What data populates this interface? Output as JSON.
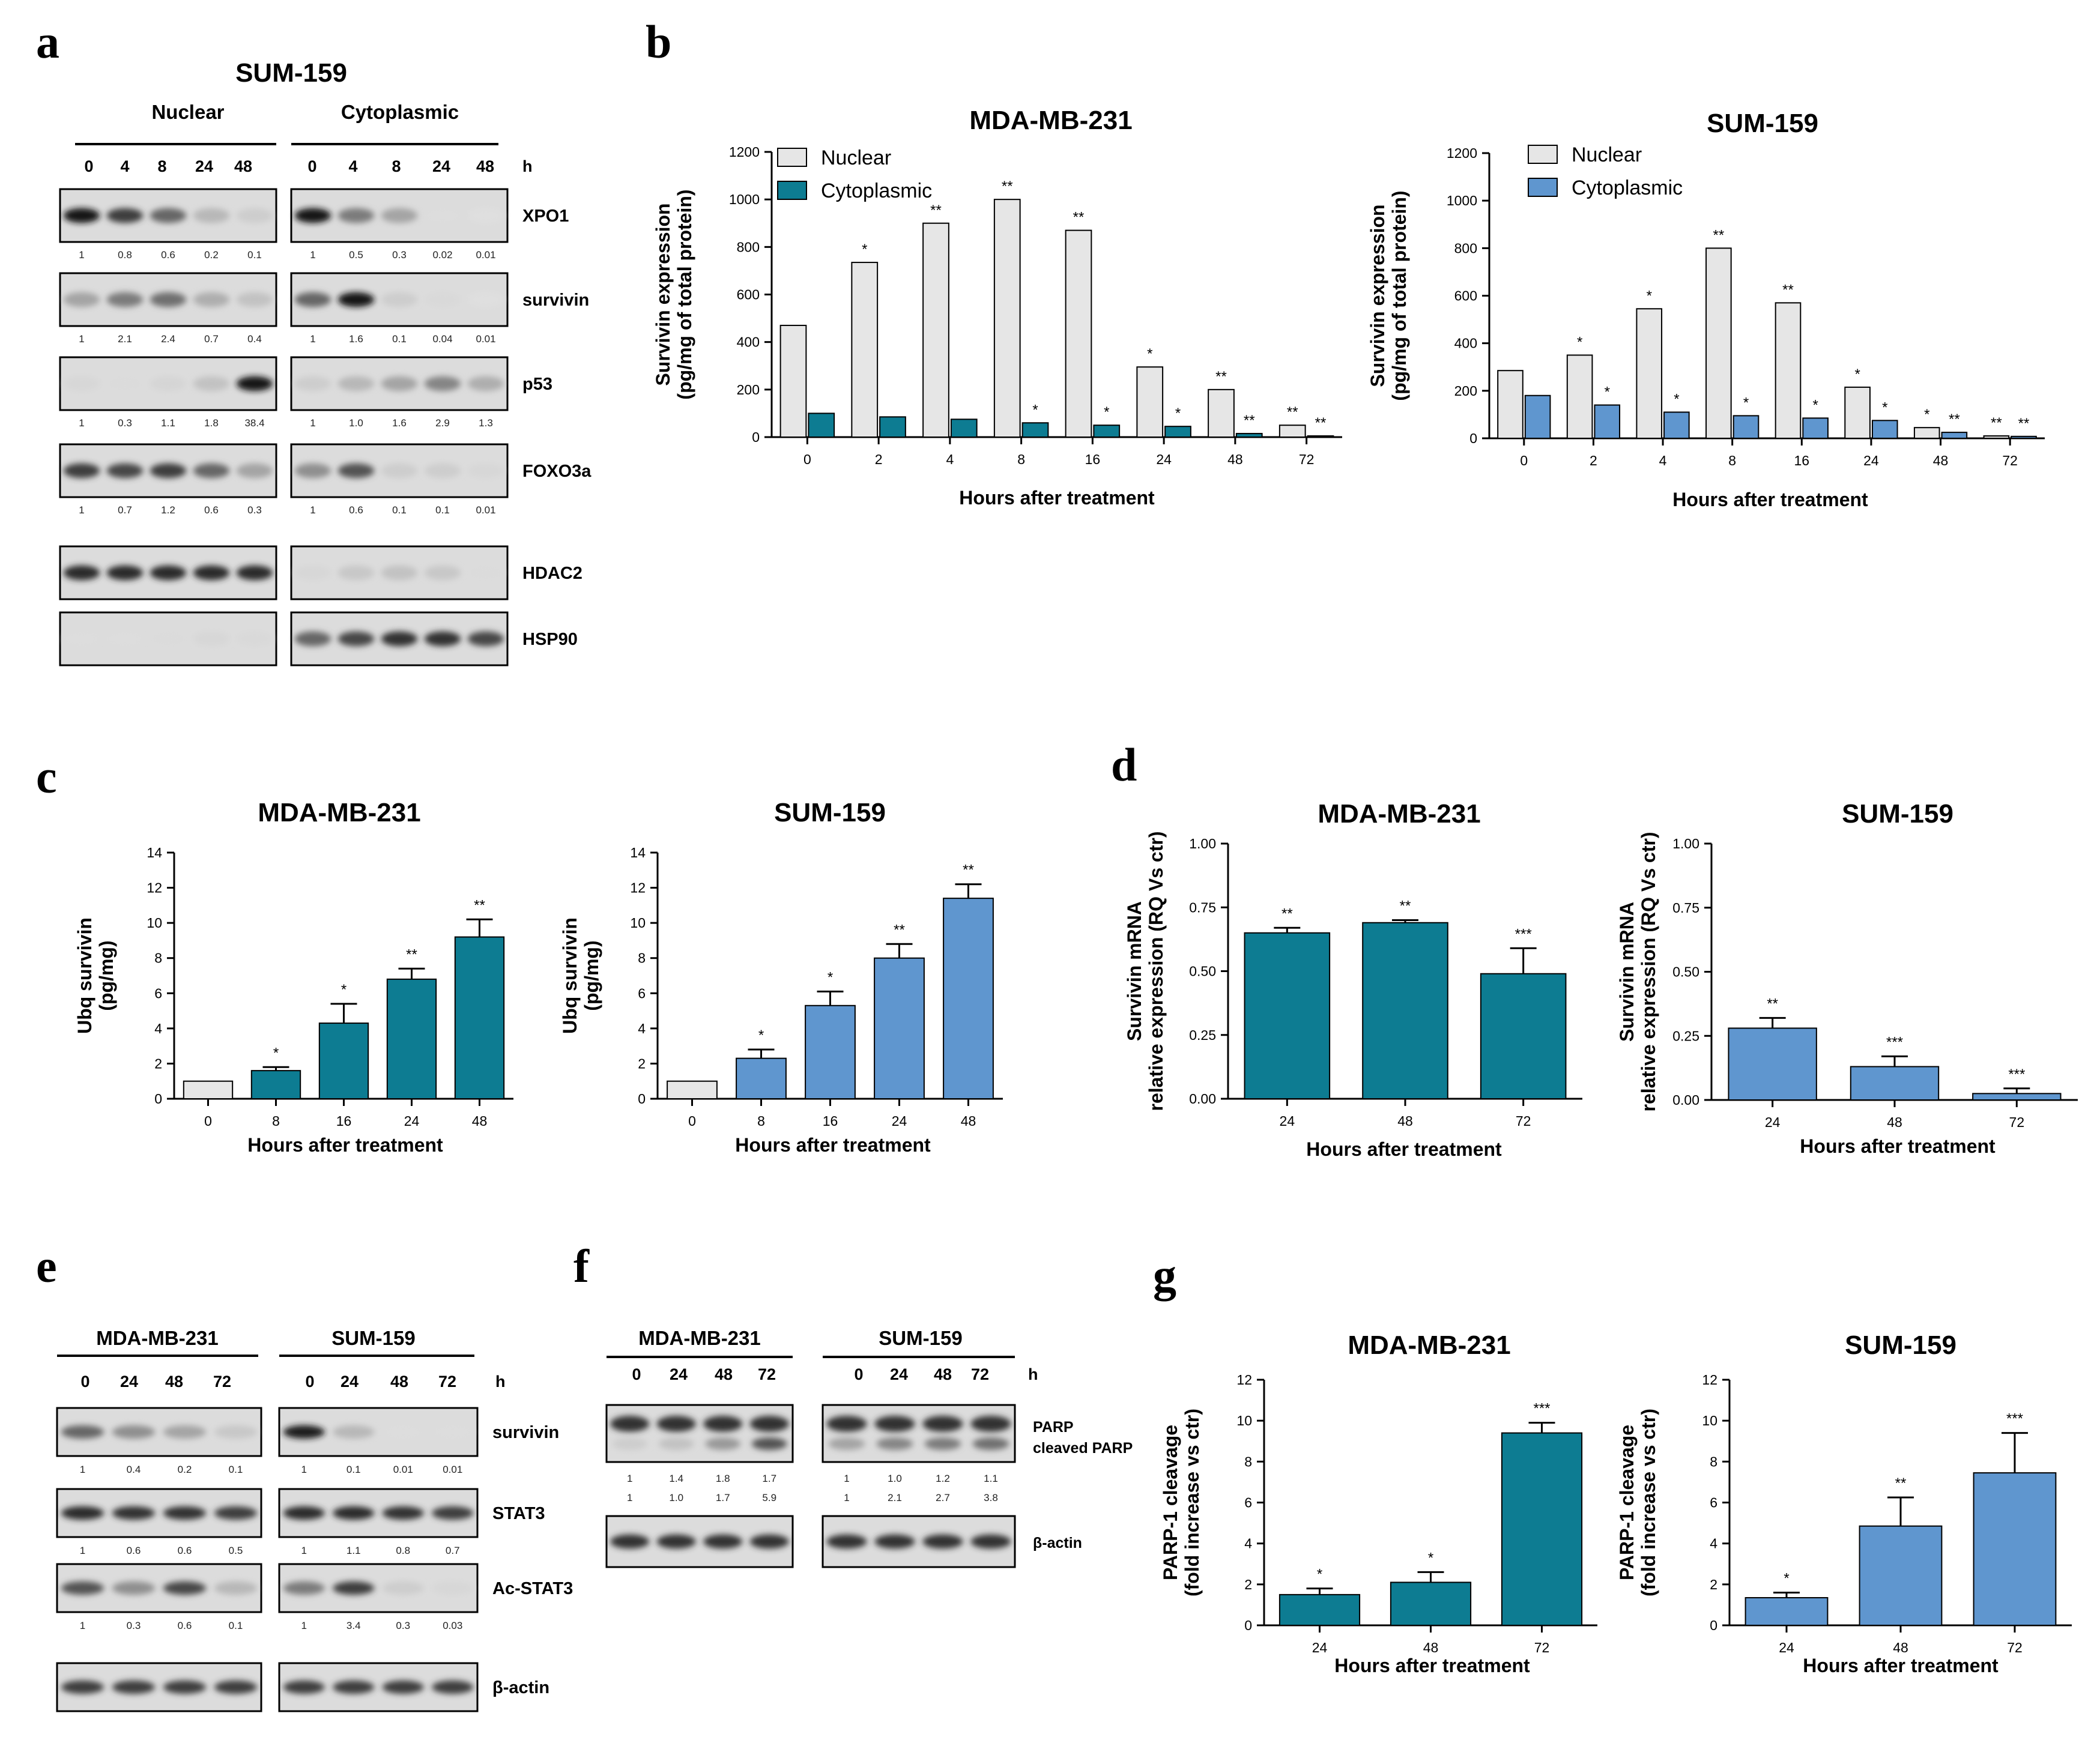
{
  "palette": {
    "teal": "#0D7C92",
    "blue": "#5F96CF",
    "lightgray": "#E6E6E6",
    "axis": "#000000"
  },
  "labels": {
    "panel_a": "a",
    "panel_b": "b",
    "panel_c": "c",
    "panel_d": "d",
    "panel_e": "e",
    "panel_f": "f",
    "panel_g": "g",
    "hours_unit": "h"
  },
  "blot_a": {
    "cell_line": "SUM-159",
    "groups": [
      "Nuclear",
      "Cytoplasmic"
    ],
    "timepoints": [
      "0",
      "4",
      "8",
      "24",
      "48"
    ],
    "proteins": [
      {
        "name": "XPO1",
        "nuclear_bands": [
          1.0,
          0.8,
          0.6,
          0.2,
          0.1
        ],
        "cyto_bands": [
          1.0,
          0.5,
          0.3,
          0.02,
          0.01
        ],
        "quant_nuclear": [
          "1",
          "0.8",
          "0.6",
          "0.2",
          "0.1"
        ],
        "quant_cyto": [
          "1",
          "0.5",
          "0.3",
          "0.02",
          "0.01"
        ]
      },
      {
        "name": "survivin",
        "nuclear_bands": [
          0.3,
          0.5,
          0.55,
          0.25,
          0.15
        ],
        "cyto_bands": [
          0.6,
          1.0,
          0.1,
          0.04,
          0.01
        ],
        "quant_nuclear": [
          "1",
          "2.1",
          "2.4",
          "0.7",
          "0.4"
        ],
        "quant_cyto": [
          "1",
          "1.6",
          "0.1",
          "0.04",
          "0.01"
        ]
      },
      {
        "name": "p53",
        "nuclear_bands": [
          0.05,
          0.03,
          0.06,
          0.15,
          1.0
        ],
        "cyto_bands": [
          0.1,
          0.2,
          0.3,
          0.45,
          0.25
        ],
        "quant_nuclear": [
          "1",
          "0.3",
          "1.1",
          "1.8",
          "38.4"
        ],
        "quant_cyto": [
          "1",
          "1.0",
          "1.6",
          "2.9",
          "1.3"
        ]
      },
      {
        "name": "FOXO3a",
        "nuclear_bands": [
          0.8,
          0.75,
          0.8,
          0.6,
          0.3
        ],
        "cyto_bands": [
          0.4,
          0.7,
          0.1,
          0.1,
          0.05
        ],
        "quant_nuclear": [
          "1",
          "0.7",
          "1.2",
          "0.6",
          "0.3"
        ],
        "quant_cyto": [
          "1",
          "0.6",
          "0.1",
          "0.1",
          "0.01"
        ]
      },
      {
        "name": "HDAC2",
        "nuclear_bands": [
          0.9,
          0.9,
          0.9,
          0.9,
          0.9
        ],
        "cyto_bands": [
          0.05,
          0.12,
          0.15,
          0.12,
          0.03
        ],
        "quant_nuclear": [],
        "quant_cyto": []
      },
      {
        "name": "HSP90",
        "nuclear_bands": [
          0.02,
          0.02,
          0.03,
          0.05,
          0.04
        ],
        "cyto_bands": [
          0.6,
          0.75,
          0.85,
          0.85,
          0.75
        ],
        "quant_nuclear": [],
        "quant_cyto": []
      }
    ]
  },
  "blot_e": {
    "cell_lines": [
      "MDA-MB-231",
      "SUM-159"
    ],
    "timepoints": [
      "0",
      "24",
      "48",
      "72"
    ],
    "proteins": [
      {
        "name": "survivin",
        "left_bands": [
          0.6,
          0.4,
          0.3,
          0.12
        ],
        "right_bands": [
          0.95,
          0.2,
          0.02,
          0.02
        ],
        "quant_left": [
          "1",
          "0.4",
          "0.2",
          "0.1"
        ],
        "quant_right": [
          "1",
          "0.1",
          "0.01",
          "0.01"
        ]
      },
      {
        "name": "STAT3",
        "left_bands": [
          0.9,
          0.85,
          0.85,
          0.8
        ],
        "right_bands": [
          0.9,
          0.9,
          0.85,
          0.8
        ],
        "quant_left": [
          "1",
          "0.6",
          "0.6",
          "0.5"
        ],
        "quant_right": [
          "1",
          "1.1",
          "0.8",
          "0.7"
        ]
      },
      {
        "name": "Ac-STAT3",
        "left_bands": [
          0.7,
          0.4,
          0.75,
          0.2
        ],
        "right_bands": [
          0.5,
          0.8,
          0.1,
          0.05
        ],
        "quant_left": [
          "1",
          "0.3",
          "0.6",
          "0.1"
        ],
        "quant_right": [
          "1",
          "3.4",
          "0.3",
          "0.03"
        ]
      },
      {
        "name": "β-actin",
        "left_bands": [
          0.8,
          0.8,
          0.8,
          0.8
        ],
        "right_bands": [
          0.8,
          0.8,
          0.8,
          0.8
        ],
        "quant_left": [],
        "quant_right": []
      }
    ]
  },
  "blot_f": {
    "cell_lines": [
      "MDA-MB-231",
      "SUM-159"
    ],
    "timepoints": [
      "0",
      "24",
      "48",
      "72"
    ],
    "proteins": [
      {
        "name": "PARP",
        "name2": "cleaved PARP",
        "left_bands": [
          0.85,
          0.85,
          0.85,
          0.85
        ],
        "right_bands": [
          0.85,
          0.85,
          0.85,
          0.85
        ],
        "left_bands2": [
          0.1,
          0.15,
          0.35,
          0.7
        ],
        "right_bands2": [
          0.3,
          0.45,
          0.5,
          0.55
        ],
        "quant_left": [
          "1",
          "1.4",
          "1.8",
          "1.7"
        ],
        "quant_right": [
          "1",
          "1.0",
          "1.2",
          "1.1"
        ],
        "quant_left2": [
          "1",
          "1.0",
          "1.7",
          "5.9"
        ],
        "quant_right2": [
          "1",
          "2.1",
          "2.7",
          "3.8"
        ]
      },
      {
        "name": "β-actin",
        "left_bands": [
          0.85,
          0.85,
          0.85,
          0.85
        ],
        "right_bands": [
          0.85,
          0.85,
          0.85,
          0.85
        ],
        "quant_left": [],
        "quant_right": []
      }
    ]
  },
  "chart_data": [
    {
      "id": "b1",
      "type": "bar",
      "title": "MDA-MB-231",
      "xlabel": "Hours after treatment",
      "ylabel": "Survivin expression\n(pg/mg of total protein)",
      "categories": [
        "0",
        "2",
        "4",
        "8",
        "16",
        "24",
        "48",
        "72"
      ],
      "series": [
        {
          "name": "Nuclear",
          "color": "#E6E6E6",
          "values": [
            470,
            735,
            900,
            1000,
            870,
            295,
            200,
            50
          ],
          "significance": [
            "",
            "*",
            "**",
            "**",
            "**",
            "*",
            "**",
            "**"
          ]
        },
        {
          "name": "Cytoplasmic",
          "color": "#0D7C92",
          "values": [
            100,
            85,
            75,
            60,
            50,
            45,
            15,
            5
          ],
          "significance": [
            "",
            "",
            "",
            "*",
            "*",
            "*",
            "**",
            "**"
          ]
        }
      ],
      "ylim": [
        0,
        1200
      ],
      "yticks": [
        0,
        200,
        400,
        600,
        800,
        1000,
        1200
      ],
      "legend": "top-left",
      "grid": false
    },
    {
      "id": "b2",
      "type": "bar",
      "title": "SUM-159",
      "xlabel": "Hours after treatment",
      "ylabel": "Survivin expression\n(pg/mg of total protein)",
      "categories": [
        "0",
        "2",
        "4",
        "8",
        "16",
        "24",
        "48",
        "72"
      ],
      "series": [
        {
          "name": "Nuclear",
          "color": "#E6E6E6",
          "values": [
            285,
            350,
            545,
            800,
            570,
            215,
            45,
            10
          ],
          "significance": [
            "",
            "*",
            "*",
            "**",
            "**",
            "*",
            "*",
            "**"
          ]
        },
        {
          "name": "Cytoplasmic",
          "color": "#5F96CF",
          "values": [
            180,
            140,
            110,
            95,
            85,
            75,
            25,
            8
          ],
          "significance": [
            "",
            "*",
            "*",
            "*",
            "*",
            "*",
            "**",
            "**"
          ]
        }
      ],
      "ylim": [
        0,
        1200
      ],
      "yticks": [
        0,
        200,
        400,
        600,
        800,
        1000,
        1200
      ],
      "legend": "top-left",
      "grid": false
    },
    {
      "id": "c1",
      "type": "bar",
      "title": "MDA-MB-231",
      "xlabel": "Hours after treatment",
      "ylabel": "Ubq survivin\n(pg/mg)",
      "categories": [
        "0",
        "8",
        "16",
        "24",
        "48"
      ],
      "values": [
        1,
        1.6,
        4.3,
        6.8,
        9.2
      ],
      "errors": [
        0,
        0.2,
        1.1,
        0.6,
        1.0
      ],
      "significance": [
        "",
        "*",
        "*",
        "**",
        "**"
      ],
      "first_color": "#E6E6E6",
      "color": "#0D7C92",
      "ylim": [
        0,
        14
      ],
      "yticks": [
        0,
        2,
        4,
        6,
        8,
        10,
        12,
        14
      ]
    },
    {
      "id": "c2",
      "type": "bar",
      "title": "SUM-159",
      "xlabel": "Hours after treatment",
      "ylabel": "Ubq survivin\n(pg/mg)",
      "categories": [
        "0",
        "8",
        "16",
        "24",
        "48"
      ],
      "values": [
        1,
        2.3,
        5.3,
        8.0,
        11.4
      ],
      "errors": [
        0,
        0.5,
        0.8,
        0.8,
        0.8
      ],
      "significance": [
        "",
        "*",
        "*",
        "**",
        "**"
      ],
      "first_color": "#E6E6E6",
      "color": "#5F96CF",
      "ylim": [
        0,
        14
      ],
      "yticks": [
        0,
        2,
        4,
        6,
        8,
        10,
        12,
        14
      ]
    },
    {
      "id": "d1",
      "type": "bar",
      "title": "MDA-MB-231",
      "xlabel": "Hours after treatment",
      "ylabel": "Survivin mRNA\nrelative expression (RQ Vs ctr)",
      "categories": [
        "24",
        "48",
        "72"
      ],
      "values": [
        0.65,
        0.69,
        0.49
      ],
      "errors": [
        0.02,
        0.01,
        0.1
      ],
      "significance": [
        "**",
        "**",
        "***"
      ],
      "color": "#0D7C92",
      "ylim": [
        0,
        1.0
      ],
      "yticks": [
        0.0,
        0.25,
        0.5,
        0.75,
        1.0
      ],
      "tick_labels": [
        "0.00",
        "0.25",
        "0.50",
        "0.75",
        "1.00"
      ]
    },
    {
      "id": "d2",
      "type": "bar",
      "title": "SUM-159",
      "xlabel": "Hours after treatment",
      "ylabel": "Survivin mRNA\nrelative expression (RQ Vs ctr)",
      "categories": [
        "24",
        "48",
        "72"
      ],
      "values": [
        0.28,
        0.13,
        0.025
      ],
      "errors": [
        0.04,
        0.04,
        0.02
      ],
      "significance": [
        "**",
        "***",
        "***"
      ],
      "color": "#5F96CF",
      "ylim": [
        0,
        1.0
      ],
      "yticks": [
        0.0,
        0.25,
        0.5,
        0.75,
        1.0
      ],
      "tick_labels": [
        "0.00",
        "0.25",
        "0.50",
        "0.75",
        "1.00"
      ]
    },
    {
      "id": "g1",
      "type": "bar",
      "title": "MDA-MB-231",
      "xlabel": "Hours after treatment",
      "ylabel": "PARP-1 cleavage\n(fold increase vs ctr)",
      "categories": [
        "24",
        "48",
        "72"
      ],
      "values": [
        1.5,
        2.1,
        9.4
      ],
      "errors": [
        0.3,
        0.5,
        0.5
      ],
      "significance": [
        "*",
        "*",
        "***"
      ],
      "color": "#0D7C92",
      "ylim": [
        0,
        12
      ],
      "yticks": [
        0,
        2,
        4,
        6,
        8,
        10,
        12
      ]
    },
    {
      "id": "g2",
      "type": "bar",
      "title": "SUM-159",
      "xlabel": "Hours after treatment",
      "ylabel": "PARP-1 cleavage\n(fold increase vs ctr)",
      "categories": [
        "24",
        "48",
        "72"
      ],
      "values": [
        1.35,
        4.85,
        7.45
      ],
      "errors": [
        0.25,
        1.4,
        1.95
      ],
      "significance": [
        "*",
        "**",
        "***"
      ],
      "color": "#5F96CF",
      "ylim": [
        0,
        12
      ],
      "yticks": [
        0,
        2,
        4,
        6,
        8,
        10,
        12
      ]
    }
  ]
}
